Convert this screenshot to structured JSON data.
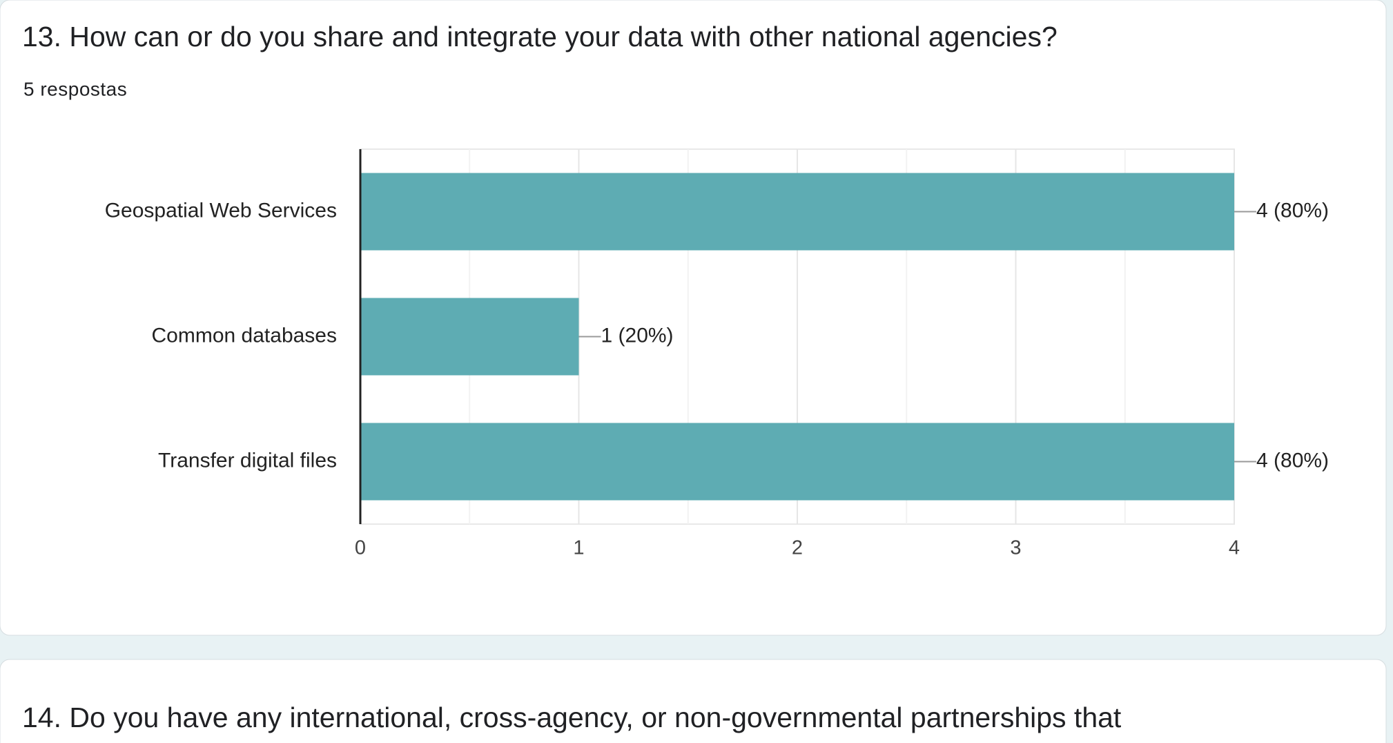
{
  "chart_data": {
    "type": "hbar",
    "title": "13. How can or do you share and integrate your data with other national agencies?",
    "subtitle": "5 respostas",
    "categories": [
      "Geospatial Web Services",
      "Common databases",
      "Transfer digital files"
    ],
    "values": [
      4,
      1,
      4
    ],
    "value_labels": [
      "4 (80%)",
      "1 (20%)",
      "4 (80%)"
    ],
    "color": "#5eacb3",
    "xlim": [
      0,
      4
    ],
    "xticks": [
      0,
      1,
      2,
      3,
      4
    ],
    "xminor": [
      0.5,
      1.5,
      2.5,
      3.5
    ],
    "grid": true
  },
  "next_question": {
    "title": "14. Do you have any international, cross-agency, or non-governmental partnerships that"
  }
}
